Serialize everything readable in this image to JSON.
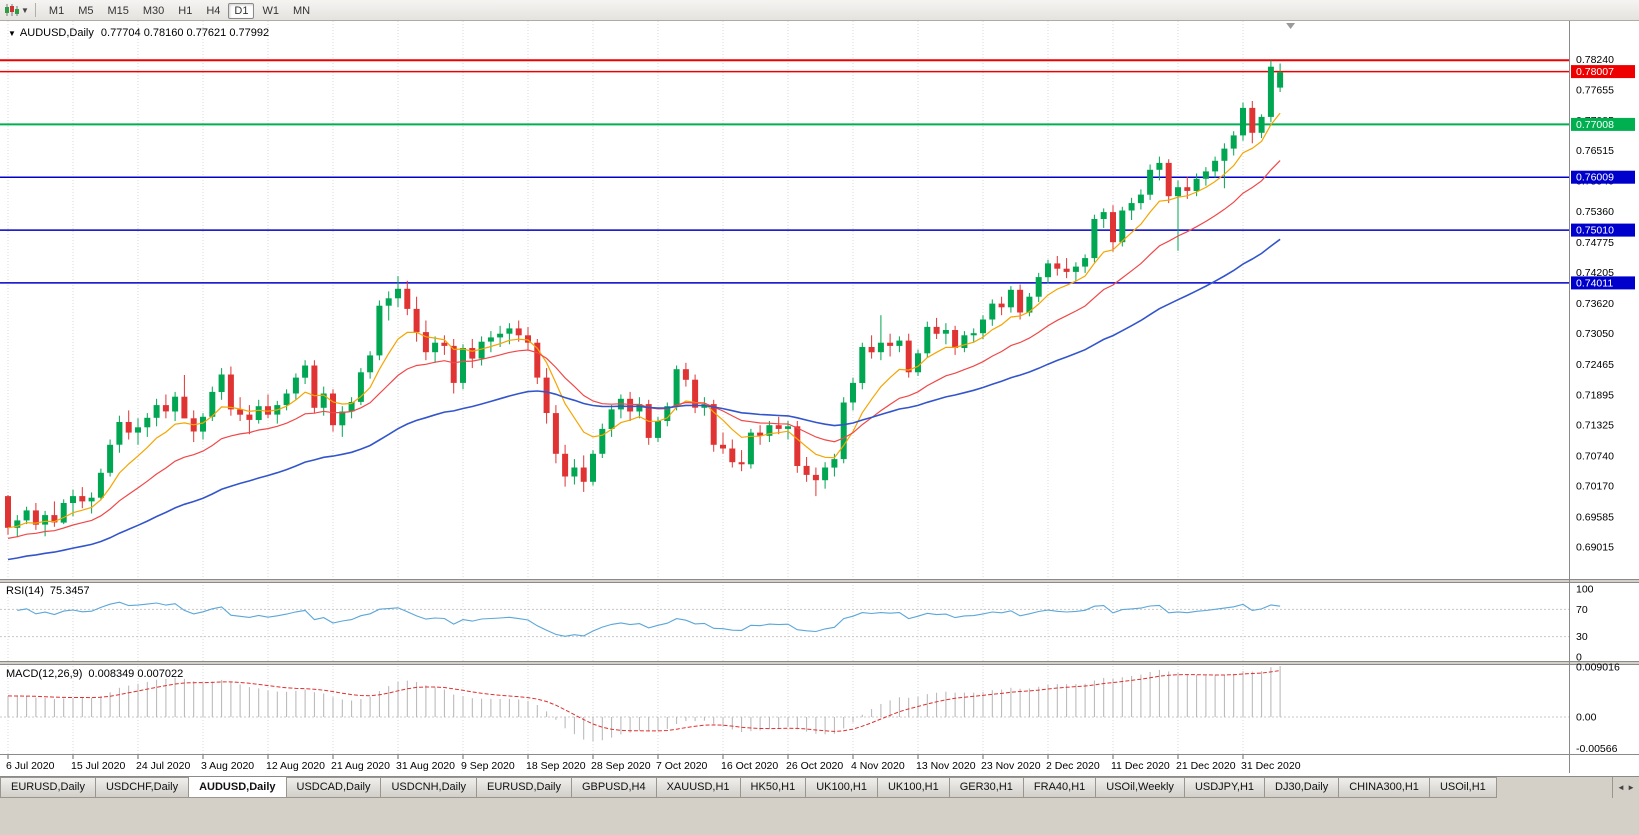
{
  "toolbar": {
    "timeframes": [
      "M1",
      "M5",
      "M15",
      "M30",
      "H1",
      "H4",
      "D1",
      "W1",
      "MN"
    ],
    "active_timeframe": "D1"
  },
  "chart": {
    "title": "AUDUSD,Daily",
    "ohlc_text": "0.77704 0.78160 0.77621 0.77992"
  },
  "chart_data": {
    "type": "candlestick",
    "symbol": "AUDUSD",
    "period": "Daily",
    "last_ohlc": {
      "open": 0.77704,
      "high": 0.7816,
      "low": 0.77621,
      "close": 0.77992
    },
    "price_range": [
      0.6845,
      0.7885
    ],
    "up_color": "#00a651",
    "down_color": "#e03434",
    "x_label_step": 7,
    "x_labels": [
      "6 Jul 2020",
      "15 Jul 2020",
      "24 Jul 2020",
      "3 Aug 2020",
      "12 Aug 2020",
      "21 Aug 2020",
      "31 Aug 2020",
      "9 Sep 2020",
      "18 Sep 2020",
      "28 Sep 2020",
      "7 Oct 2020",
      "16 Oct 2020",
      "26 Oct 2020",
      "4 Nov 2020",
      "13 Nov 2020",
      "23 Nov 2020",
      "2 Dec 2020",
      "11 Dec 2020",
      "21 Dec 2020",
      "31 Dec 2020"
    ],
    "y_axis_labels": [
      "0.78240",
      "0.77655",
      "0.77085",
      "0.76515",
      "0.75940",
      "0.75360",
      "0.74775",
      "0.74205",
      "0.73620",
      "0.73050",
      "0.72465",
      "0.71895",
      "0.71325",
      "0.70740",
      "0.70170",
      "0.69585",
      "0.69015"
    ],
    "h_lines": [
      {
        "price": 0.7822,
        "color": "#ee0000",
        "width": 2,
        "badge": null
      },
      {
        "price": 0.78007,
        "color": "#ee0000",
        "width": 1.5,
        "badge": "0.78007"
      },
      {
        "price": 0.77008,
        "color": "#00b050",
        "width": 2,
        "badge": "0.77008"
      },
      {
        "price": 0.76009,
        "color": "#0000cc",
        "width": 1.5,
        "badge": "0.76009"
      },
      {
        "price": 0.7501,
        "color": "#0000cc",
        "width": 1.5,
        "badge": "0.75010"
      },
      {
        "price": 0.74011,
        "color": "#0000cc",
        "width": 1.5,
        "badge": "0.74011"
      }
    ],
    "moving_averages": [
      {
        "period": 8,
        "color": "#f5a500",
        "width": 1.2,
        "seed_offset": 0
      },
      {
        "period": 20,
        "color": "#f04848",
        "width": 1.2,
        "seed_offset": -0.002
      },
      {
        "period": 50,
        "color": "#3355cc",
        "width": 1.6,
        "seed_offset": -0.006
      }
    ],
    "candles": [
      [
        0.6998,
        0.7,
        0.6925,
        0.6938
      ],
      [
        0.6938,
        0.6962,
        0.692,
        0.6952
      ],
      [
        0.6952,
        0.6978,
        0.6945,
        0.6971
      ],
      [
        0.6971,
        0.6985,
        0.6934,
        0.6944
      ],
      [
        0.6944,
        0.697,
        0.6922,
        0.6962
      ],
      [
        0.6962,
        0.6988,
        0.694,
        0.6948
      ],
      [
        0.6948,
        0.6992,
        0.6945,
        0.6985
      ],
      [
        0.6985,
        0.701,
        0.696,
        0.6998
      ],
      [
        0.6998,
        0.7015,
        0.6975,
        0.6988
      ],
      [
        0.6988,
        0.7005,
        0.6965,
        0.6995
      ],
      [
        0.6995,
        0.705,
        0.699,
        0.7042
      ],
      [
        0.7042,
        0.7105,
        0.7035,
        0.7095
      ],
      [
        0.7095,
        0.715,
        0.708,
        0.7138
      ],
      [
        0.7138,
        0.716,
        0.7105,
        0.7118
      ],
      [
        0.7118,
        0.7145,
        0.7095,
        0.7128
      ],
      [
        0.7128,
        0.7155,
        0.711,
        0.7146
      ],
      [
        0.7146,
        0.7182,
        0.713,
        0.717
      ],
      [
        0.717,
        0.719,
        0.7145,
        0.7158
      ],
      [
        0.7158,
        0.7195,
        0.714,
        0.7186
      ],
      [
        0.7186,
        0.7227,
        0.7165,
        0.7145
      ],
      [
        0.7145,
        0.716,
        0.71,
        0.712
      ],
      [
        0.712,
        0.7155,
        0.7105,
        0.7148
      ],
      [
        0.7148,
        0.7205,
        0.714,
        0.7195
      ],
      [
        0.7195,
        0.724,
        0.718,
        0.7228
      ],
      [
        0.7228,
        0.7243,
        0.715,
        0.7162
      ],
      [
        0.7162,
        0.7185,
        0.714,
        0.7152
      ],
      [
        0.7152,
        0.717,
        0.7115,
        0.7142
      ],
      [
        0.7142,
        0.718,
        0.7135,
        0.7168
      ],
      [
        0.7168,
        0.719,
        0.7145,
        0.7152
      ],
      [
        0.7152,
        0.7178,
        0.7135,
        0.717
      ],
      [
        0.717,
        0.72,
        0.716,
        0.7192
      ],
      [
        0.7192,
        0.723,
        0.718,
        0.7222
      ],
      [
        0.7222,
        0.7255,
        0.721,
        0.7245
      ],
      [
        0.7245,
        0.7255,
        0.7155,
        0.7165
      ],
      [
        0.7165,
        0.7205,
        0.715,
        0.7192
      ],
      [
        0.7192,
        0.72,
        0.712,
        0.7132
      ],
      [
        0.7132,
        0.7168,
        0.711,
        0.7158
      ],
      [
        0.7158,
        0.7185,
        0.7145,
        0.7176
      ],
      [
        0.7176,
        0.724,
        0.717,
        0.7232
      ],
      [
        0.7232,
        0.7272,
        0.722,
        0.7264
      ],
      [
        0.7264,
        0.7368,
        0.7255,
        0.7358
      ],
      [
        0.7358,
        0.7385,
        0.733,
        0.7372
      ],
      [
        0.7372,
        0.7414,
        0.7355,
        0.739
      ],
      [
        0.739,
        0.7405,
        0.734,
        0.7352
      ],
      [
        0.7352,
        0.7375,
        0.729,
        0.7308
      ],
      [
        0.7308,
        0.733,
        0.7255,
        0.727
      ],
      [
        0.727,
        0.73,
        0.725,
        0.7288
      ],
      [
        0.7288,
        0.7302,
        0.7265,
        0.7282
      ],
      [
        0.7282,
        0.7295,
        0.7192,
        0.7212
      ],
      [
        0.7212,
        0.7285,
        0.72,
        0.7278
      ],
      [
        0.7278,
        0.7295,
        0.724,
        0.7258
      ],
      [
        0.7258,
        0.73,
        0.7245,
        0.729
      ],
      [
        0.729,
        0.731,
        0.727,
        0.7298
      ],
      [
        0.7298,
        0.732,
        0.728,
        0.7305
      ],
      [
        0.7305,
        0.7325,
        0.7285,
        0.7315
      ],
      [
        0.7315,
        0.733,
        0.729,
        0.7302
      ],
      [
        0.7302,
        0.7318,
        0.7275,
        0.7288
      ],
      [
        0.7288,
        0.7295,
        0.721,
        0.7222
      ],
      [
        0.7222,
        0.724,
        0.7135,
        0.7155
      ],
      [
        0.7155,
        0.717,
        0.706,
        0.7078
      ],
      [
        0.7078,
        0.7095,
        0.7016,
        0.7035
      ],
      [
        0.7035,
        0.7068,
        0.702,
        0.7052
      ],
      [
        0.7052,
        0.7075,
        0.7006,
        0.7025
      ],
      [
        0.7025,
        0.7085,
        0.7018,
        0.7078
      ],
      [
        0.7078,
        0.7135,
        0.707,
        0.7125
      ],
      [
        0.7125,
        0.717,
        0.711,
        0.7162
      ],
      [
        0.7162,
        0.719,
        0.7145,
        0.7182
      ],
      [
        0.7182,
        0.7195,
        0.714,
        0.7158
      ],
      [
        0.7158,
        0.7185,
        0.7145,
        0.7172
      ],
      [
        0.7172,
        0.718,
        0.7095,
        0.7108
      ],
      [
        0.7108,
        0.7148,
        0.71,
        0.714
      ],
      [
        0.714,
        0.7175,
        0.713,
        0.7168
      ],
      [
        0.7168,
        0.7245,
        0.716,
        0.7238
      ],
      [
        0.7238,
        0.725,
        0.7205,
        0.7218
      ],
      [
        0.7218,
        0.7228,
        0.7155,
        0.7165
      ],
      [
        0.7165,
        0.7185,
        0.715,
        0.7172
      ],
      [
        0.7172,
        0.718,
        0.7082,
        0.7095
      ],
      [
        0.7095,
        0.7118,
        0.7078,
        0.7088
      ],
      [
        0.7088,
        0.7105,
        0.7052,
        0.7062
      ],
      [
        0.7062,
        0.7085,
        0.7045,
        0.7058
      ],
      [
        0.7058,
        0.7125,
        0.705,
        0.7118
      ],
      [
        0.7118,
        0.7132,
        0.7095,
        0.7112
      ],
      [
        0.7112,
        0.714,
        0.71,
        0.7132
      ],
      [
        0.7132,
        0.7148,
        0.7115,
        0.7125
      ],
      [
        0.7125,
        0.714,
        0.7105,
        0.713
      ],
      [
        0.713,
        0.714,
        0.7042,
        0.7055
      ],
      [
        0.7055,
        0.7072,
        0.7025,
        0.7038
      ],
      [
        0.7038,
        0.7052,
        0.6998,
        0.7028
      ],
      [
        0.7028,
        0.7062,
        0.7012,
        0.7052
      ],
      [
        0.7052,
        0.7078,
        0.7035,
        0.7068
      ],
      [
        0.7068,
        0.7185,
        0.706,
        0.7175
      ],
      [
        0.7175,
        0.7222,
        0.716,
        0.7212
      ],
      [
        0.7212,
        0.7288,
        0.72,
        0.728
      ],
      [
        0.728,
        0.7302,
        0.7258,
        0.727
      ],
      [
        0.727,
        0.734,
        0.7255,
        0.7288
      ],
      [
        0.7288,
        0.7305,
        0.7262,
        0.7282
      ],
      [
        0.7282,
        0.73,
        0.727,
        0.7292
      ],
      [
        0.7292,
        0.7305,
        0.7222,
        0.7232
      ],
      [
        0.7232,
        0.7275,
        0.7225,
        0.7268
      ],
      [
        0.7268,
        0.7328,
        0.726,
        0.7318
      ],
      [
        0.7318,
        0.7335,
        0.7295,
        0.7305
      ],
      [
        0.7305,
        0.7325,
        0.7285,
        0.7312
      ],
      [
        0.7312,
        0.732,
        0.7265,
        0.7278
      ],
      [
        0.7278,
        0.731,
        0.727,
        0.7302
      ],
      [
        0.7302,
        0.7315,
        0.7288,
        0.7306
      ],
      [
        0.7306,
        0.734,
        0.7295,
        0.7332
      ],
      [
        0.7332,
        0.737,
        0.732,
        0.7362
      ],
      [
        0.7362,
        0.7375,
        0.734,
        0.7355
      ],
      [
        0.7355,
        0.7395,
        0.7345,
        0.7388
      ],
      [
        0.7388,
        0.7398,
        0.7332,
        0.7345
      ],
      [
        0.7345,
        0.7382,
        0.7338,
        0.7375
      ],
      [
        0.7375,
        0.742,
        0.7365,
        0.7412
      ],
      [
        0.7412,
        0.7445,
        0.74,
        0.7438
      ],
      [
        0.7438,
        0.7452,
        0.7415,
        0.7428
      ],
      [
        0.7428,
        0.7448,
        0.741,
        0.7422
      ],
      [
        0.7422,
        0.744,
        0.7405,
        0.7432
      ],
      [
        0.7432,
        0.7455,
        0.742,
        0.7448
      ],
      [
        0.7448,
        0.753,
        0.744,
        0.7522
      ],
      [
        0.7522,
        0.7542,
        0.7505,
        0.7535
      ],
      [
        0.7535,
        0.7548,
        0.746,
        0.7478
      ],
      [
        0.7478,
        0.7545,
        0.747,
        0.7538
      ],
      [
        0.7538,
        0.7562,
        0.752,
        0.7552
      ],
      [
        0.7552,
        0.7578,
        0.754,
        0.7568
      ],
      [
        0.7568,
        0.7625,
        0.7558,
        0.7615
      ],
      [
        0.7615,
        0.764,
        0.7595,
        0.7628
      ],
      [
        0.7628,
        0.7635,
        0.7552,
        0.7565
      ],
      [
        0.7565,
        0.7595,
        0.7462,
        0.7582
      ],
      [
        0.7582,
        0.7602,
        0.756,
        0.7575
      ],
      [
        0.7575,
        0.7608,
        0.7565,
        0.7598
      ],
      [
        0.7598,
        0.762,
        0.7585,
        0.7612
      ],
      [
        0.7612,
        0.764,
        0.76,
        0.7632
      ],
      [
        0.7632,
        0.7665,
        0.758,
        0.7655
      ],
      [
        0.7655,
        0.7688,
        0.7642,
        0.768
      ],
      [
        0.768,
        0.7742,
        0.767,
        0.7732
      ],
      [
        0.7732,
        0.7745,
        0.7665,
        0.7685
      ],
      [
        0.7685,
        0.772,
        0.7675,
        0.7715
      ],
      [
        0.7715,
        0.7822,
        0.7705,
        0.781
      ],
      [
        0.77704,
        0.7816,
        0.77621,
        0.77992
      ]
    ],
    "rsi": {
      "label": "RSI(14)",
      "value": "75.3457",
      "period": 14,
      "levels": [
        100,
        70,
        30,
        0
      ],
      "color": "#5ba7d9"
    },
    "macd": {
      "label": "MACD(12,26,9)",
      "values": "0.008349 0.007022",
      "axis_labels": [
        "0.009016",
        "0.00",
        "-0.00566"
      ],
      "histogram_color": "#b4b4b4",
      "signal_color": "#e03030"
    }
  },
  "tabs": {
    "items": [
      {
        "label": "EURUSD,Daily",
        "active": false
      },
      {
        "label": "USDCHF,Daily",
        "active": false
      },
      {
        "label": "AUDUSD,Daily",
        "active": true
      },
      {
        "label": "USDCAD,Daily",
        "active": false
      },
      {
        "label": "USDCNH,Daily",
        "active": false
      },
      {
        "label": "EURUSD,Daily",
        "active": false
      },
      {
        "label": "GBPUSD,H4",
        "active": false
      },
      {
        "label": "XAUUSD,H1",
        "active": false
      },
      {
        "label": "HK50,H1",
        "active": false
      },
      {
        "label": "UK100,H1",
        "active": false
      },
      {
        "label": "UK100,H1",
        "active": false
      },
      {
        "label": "GER30,H1",
        "active": false
      },
      {
        "label": "FRA40,H1",
        "active": false
      },
      {
        "label": "USOil,Weekly",
        "active": false
      },
      {
        "label": "USDJPY,H1",
        "active": false
      },
      {
        "label": "DJ30,Daily",
        "active": false
      },
      {
        "label": "CHINA300,H1",
        "active": false
      },
      {
        "label": "USOil,H1",
        "active": false
      }
    ],
    "scroll_left": "◄",
    "scroll_right": "►"
  }
}
